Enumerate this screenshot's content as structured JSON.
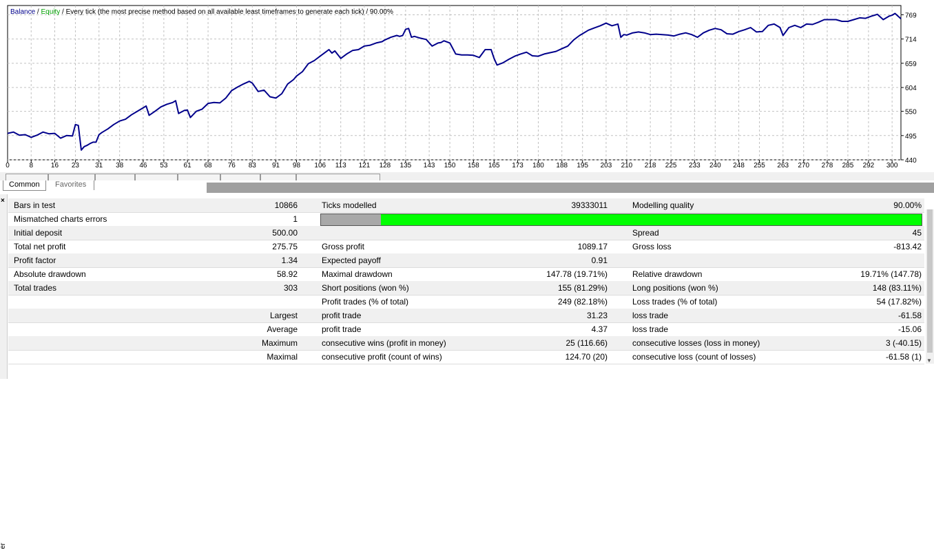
{
  "chart": {
    "legend_balance": "Balance",
    "legend_sep": " / ",
    "legend_equity": "Equity",
    "legend_rest": " / Every tick (the most precise method based on all available least timeframes to generate each tick) / 90.00%",
    "colors": {
      "balance": "#00008b",
      "equity": "#00a000",
      "grid": "#c0c0c0"
    }
  },
  "chart_data": {
    "type": "line",
    "xlabel": "",
    "ylabel": "",
    "x_ticks": [
      "0",
      "8",
      "16",
      "23",
      "31",
      "38",
      "46",
      "53",
      "61",
      "68",
      "76",
      "83",
      "91",
      "98",
      "106",
      "113",
      "121",
      "128",
      "135",
      "143",
      "150",
      "158",
      "165",
      "173",
      "180",
      "188",
      "195",
      "203",
      "210",
      "218",
      "225",
      "233",
      "240",
      "248",
      "255",
      "263",
      "270",
      "278",
      "285",
      "292",
      "300"
    ],
    "y_ticks": [
      "769",
      "714",
      "659",
      "604",
      "550",
      "495",
      "440"
    ],
    "ylim": [
      440,
      790
    ],
    "xlim": [
      0,
      303
    ],
    "grid": true,
    "series": [
      {
        "x": [
          0,
          2,
          4,
          6,
          8,
          10,
          12,
          14,
          16,
          18,
          20,
          22,
          23,
          24,
          25,
          26,
          27,
          28,
          29,
          30,
          31,
          32,
          34,
          36,
          38,
          40,
          42,
          44,
          46,
          47,
          48,
          50,
          52,
          54,
          56,
          57,
          58,
          60,
          61,
          62,
          64,
          66,
          68,
          70,
          72,
          74,
          76,
          78,
          80,
          82,
          83,
          85,
          87,
          89,
          91,
          93,
          95,
          97,
          98,
          100,
          102,
          104,
          106,
          108,
          109,
          110,
          111,
          113,
          115,
          117,
          119,
          121,
          123,
          125,
          127,
          128,
          130,
          132,
          133,
          134,
          135,
          136,
          137,
          138,
          140,
          142,
          144,
          146,
          147,
          148,
          150,
          152,
          154,
          156,
          158,
          160,
          162,
          164,
          165,
          166,
          168,
          170,
          172,
          174,
          176,
          178,
          180,
          182,
          184,
          186,
          188,
          190,
          192,
          194,
          195,
          197,
          199,
          201,
          203,
          205,
          207,
          208,
          209,
          210,
          212,
          214,
          216,
          218,
          220,
          222,
          224,
          226,
          228,
          230,
          232,
          234,
          236,
          238,
          240,
          242,
          244,
          246,
          248,
          250,
          252,
          254,
          256,
          258,
          260,
          262,
          263,
          265,
          267,
          269,
          271,
          273,
          275,
          277,
          279,
          281,
          283,
          285,
          287,
          289,
          291,
          293,
          295,
          297,
          299,
          300,
          301,
          303
        ],
        "y": [
          500,
          503,
          496,
          497,
          491,
          496,
          503,
          499,
          500,
          489,
          495,
          494,
          520,
          518,
          462,
          470,
          473,
          477,
          480,
          480,
          497,
          502,
          510,
          520,
          528,
          532,
          542,
          550,
          558,
          562,
          541,
          550,
          560,
          566,
          570,
          574,
          545,
          552,
          553,
          536,
          550,
          555,
          568,
          570,
          569,
          580,
          597,
          605,
          612,
          618,
          614,
          595,
          598,
          583,
          580,
          590,
          612,
          622,
          630,
          640,
          658,
          665,
          675,
          685,
          690,
          682,
          687,
          670,
          680,
          688,
          690,
          698,
          700,
          705,
          708,
          712,
          718,
          722,
          720,
          722,
          736,
          738,
          718,
          720,
          716,
          713,
          698,
          705,
          706,
          710,
          705,
          680,
          678,
          678,
          677,
          672,
          690,
          690,
          670,
          655,
          660,
          668,
          675,
          680,
          684,
          676,
          675,
          680,
          683,
          686,
          692,
          698,
          712,
          722,
          726,
          734,
          739,
          744,
          750,
          744,
          748,
          718,
          724,
          723,
          728,
          730,
          728,
          724,
          725,
          724,
          723,
          721,
          725,
          728,
          724,
          718,
          728,
          734,
          738,
          735,
          726,
          725,
          731,
          735,
          740,
          730,
          731,
          745,
          748,
          740,
          722,
          740,
          745,
          740,
          748,
          747,
          752,
          758,
          758,
          758,
          754,
          754,
          758,
          762,
          761,
          766,
          770,
          758,
          766,
          768,
          772,
          760
        ]
      }
    ]
  },
  "tabs": {
    "common": "Common",
    "favorites": "Favorites"
  },
  "report": {
    "rows": [
      {
        "l1": "Bars in test",
        "v1": "10866",
        "l2": "Ticks modelled",
        "v2": "39333011",
        "l3": "Modelling quality",
        "v3": "90.00%"
      },
      {
        "l1": "Mismatched charts errors",
        "v1": "1",
        "l2": "",
        "v2": "",
        "l3": "",
        "v3": ""
      },
      {
        "l1": "Initial deposit",
        "v1": "500.00",
        "l2": "",
        "v2": "",
        "l3": "Spread",
        "v3": "45"
      },
      {
        "l1": "Total net profit",
        "v1": "275.75",
        "l2": "Gross profit",
        "v2": "1089.17",
        "l3": "Gross loss",
        "v3": "-813.42"
      },
      {
        "l1": "Profit factor",
        "v1": "1.34",
        "l2": "Expected payoff",
        "v2": "0.91",
        "l3": "",
        "v3": ""
      },
      {
        "l1": "Absolute drawdown",
        "v1": "58.92",
        "l2": "Maximal drawdown",
        "v2": "147.78 (19.71%)",
        "l3": "Relative drawdown",
        "v3": "19.71% (147.78)"
      },
      {
        "l1": "Total trades",
        "v1": "303",
        "l2": "Short positions (won %)",
        "v2": "155 (81.29%)",
        "l3": "Long positions (won %)",
        "v3": "148 (83.11%)"
      },
      {
        "l1": "",
        "v1": "",
        "l2": "Profit trades (% of total)",
        "v2": "249 (82.18%)",
        "l3": "Loss trades (% of total)",
        "v3": "54 (17.82%)"
      },
      {
        "l1": "",
        "v1": "Largest",
        "l2": "profit trade",
        "v2": "31.23",
        "l3": "loss trade",
        "v3": "-61.58"
      },
      {
        "l1": "",
        "v1": "Average",
        "l2": "profit trade",
        "v2": "4.37",
        "l3": "loss trade",
        "v3": "-15.06"
      },
      {
        "l1": "",
        "v1": "Maximum",
        "l2": "consecutive wins (profit in money)",
        "v2": "25 (116.66)",
        "l3": "consecutive losses (loss in money)",
        "v3": "3 (-40.15)"
      },
      {
        "l1": "",
        "v1": "Maximal",
        "l2": "consecutive profit (count of wins)",
        "v2": "124.70 (20)",
        "l3": "consecutive loss (count of losses)",
        "v3": "-61.58 (1)"
      }
    ],
    "modelling_quality_fraction": 0.9,
    "colors": {
      "quality_fill": "#00ff00",
      "quality_base": "#a8a8a8"
    }
  },
  "side": {
    "close_glyph": "×",
    "vertical_label": "er"
  }
}
